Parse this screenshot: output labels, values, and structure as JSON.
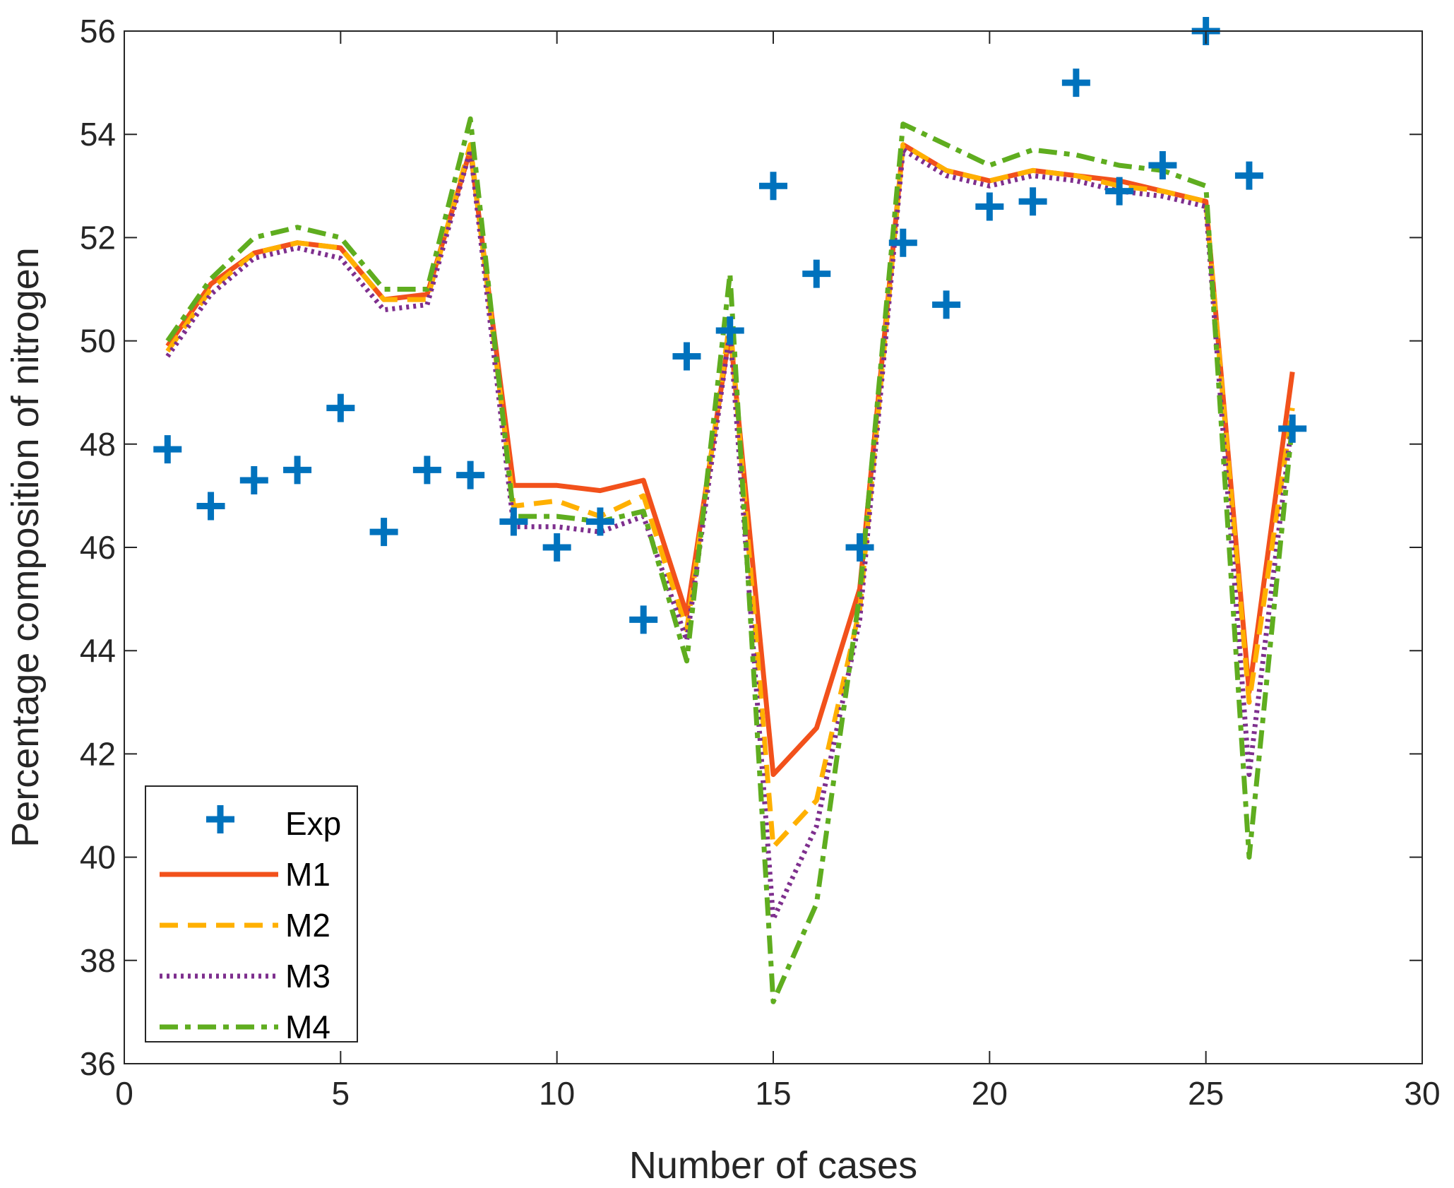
{
  "chart_data": {
    "type": "line",
    "title": "",
    "xlabel": "Number of cases",
    "ylabel": "Percentage composition of nitrogen",
    "xlim": [
      0,
      30
    ],
    "ylim": [
      36,
      56
    ],
    "xticks": [
      "0",
      "5",
      "10",
      "15",
      "20",
      "25",
      "30"
    ],
    "yticks": [
      "36",
      "38",
      "40",
      "42",
      "44",
      "46",
      "48",
      "50",
      "52",
      "54",
      "56"
    ],
    "grid": false,
    "legend_location": "bottom-left",
    "x": [
      1,
      2,
      3,
      4,
      5,
      6,
      7,
      8,
      9,
      10,
      11,
      12,
      13,
      14,
      15,
      16,
      17,
      18,
      19,
      20,
      21,
      22,
      23,
      24,
      25,
      26,
      27
    ],
    "series": [
      {
        "name": "Exp",
        "style": "marker-plus",
        "color": "#0072BD",
        "values": [
          47.9,
          46.8,
          47.3,
          47.5,
          48.7,
          46.3,
          47.5,
          47.4,
          46.5,
          46.0,
          46.5,
          44.6,
          49.7,
          50.2,
          53.0,
          51.3,
          46.0,
          51.9,
          50.7,
          52.6,
          52.7,
          55.0,
          52.9,
          53.4,
          56.0,
          53.2,
          48.3
        ]
      },
      {
        "name": "M1",
        "style": "solid",
        "color": "#F2511B",
        "values": [
          49.9,
          51.1,
          51.7,
          51.9,
          51.8,
          50.8,
          50.9,
          53.7,
          47.2,
          47.2,
          47.1,
          47.3,
          44.7,
          50.2,
          41.6,
          42.5,
          45.2,
          53.8,
          53.3,
          53.1,
          53.3,
          53.2,
          53.1,
          52.9,
          52.7,
          43.2,
          49.4
        ]
      },
      {
        "name": "M2",
        "style": "dashed",
        "color": "#FFB000",
        "values": [
          49.8,
          51.0,
          51.7,
          51.9,
          51.8,
          50.8,
          50.8,
          53.8,
          46.8,
          46.9,
          46.6,
          47.0,
          44.4,
          50.4,
          40.2,
          41.1,
          44.8,
          53.8,
          53.3,
          53.1,
          53.3,
          53.2,
          53.0,
          52.9,
          52.7,
          43.0,
          48.7
        ]
      },
      {
        "name": "M3",
        "style": "dotted",
        "color": "#7E2F8E",
        "values": [
          49.7,
          50.9,
          51.6,
          51.8,
          51.6,
          50.6,
          50.7,
          53.7,
          46.4,
          46.4,
          46.3,
          46.6,
          44.2,
          50.2,
          38.8,
          40.6,
          44.6,
          53.7,
          53.2,
          53.0,
          53.2,
          53.1,
          52.9,
          52.8,
          52.6,
          41.6,
          48.5
        ]
      },
      {
        "name": "M4",
        "style": "dashdot",
        "color": "#5FAD1F",
        "values": [
          50.0,
          51.2,
          52.0,
          52.2,
          52.0,
          51.0,
          51.0,
          54.3,
          46.6,
          46.6,
          46.5,
          46.7,
          43.8,
          51.3,
          37.2,
          39.1,
          45.1,
          54.2,
          53.8,
          53.4,
          53.7,
          53.6,
          53.4,
          53.3,
          53.0,
          40.0,
          48.4
        ]
      }
    ]
  }
}
